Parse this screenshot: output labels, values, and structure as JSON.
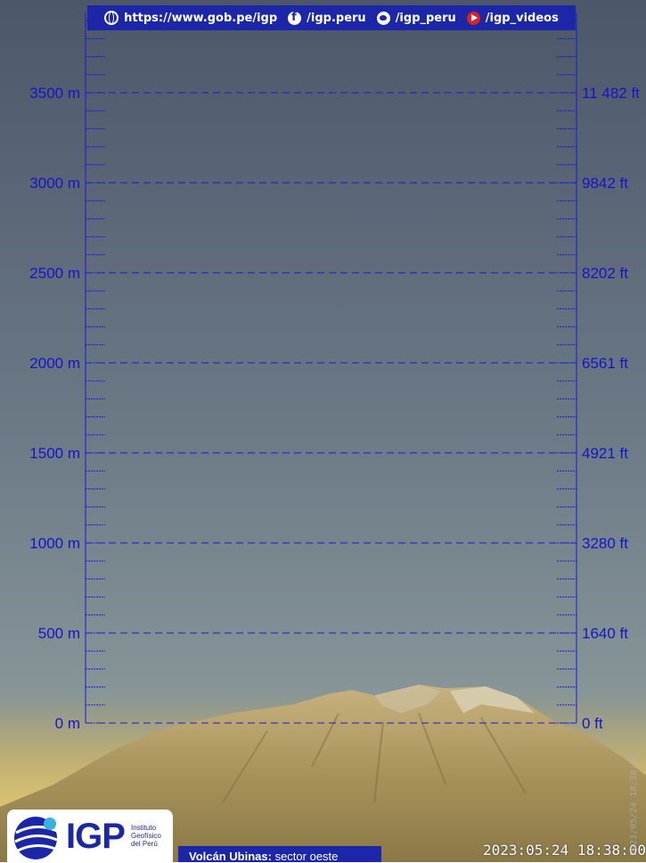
{
  "banner": {
    "url": "https://www.gob.pe/igp",
    "facebook": "/igp.peru",
    "twitter": "/igp_peru",
    "youtube": "/igp_videos"
  },
  "scale": {
    "meters": [
      "0 m",
      "500 m",
      "1000 m",
      "1500 m",
      "2000 m",
      "2500 m",
      "3000 m",
      "3500 m"
    ],
    "feet": [
      "0 ft",
      "1640 ft",
      "3280 ft",
      "4921 ft",
      "6561 ft",
      "8202 ft",
      "9842 ft",
      "11 482 ft"
    ],
    "color": "#1a1ad0"
  },
  "logo": {
    "acronym": "IGP",
    "line1": "Instituto",
    "line2": "Geofísico",
    "line3": "del Perú"
  },
  "caption": {
    "volcano": "Volcán Ubinas:",
    "sector": "sector oeste"
  },
  "timestamp": "2023:05:24 18:38:00",
  "side_stamp": "2023/05/24 18:38:00"
}
